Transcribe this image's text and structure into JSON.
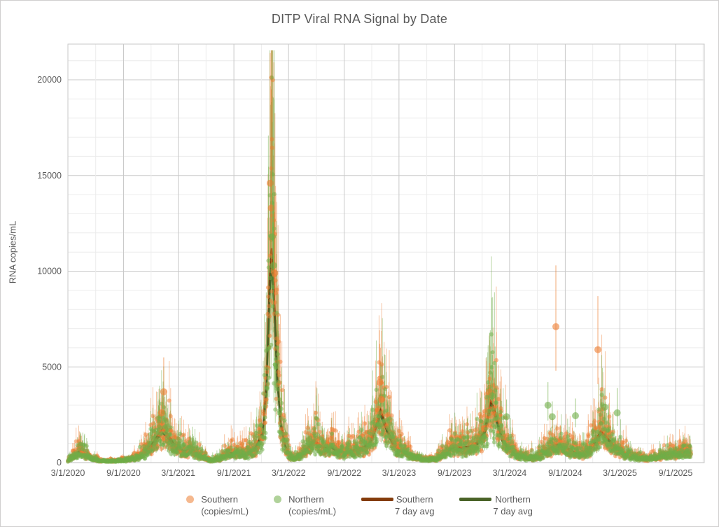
{
  "chart": {
    "title": "DITP Viral RNA Signal by Date",
    "y_axis_title": "RNA copies/mL"
  },
  "legend": {
    "items": [
      {
        "line1": "Southern",
        "line2": "(copies/mL)",
        "swatch": "circle",
        "color": "#ED7D31"
      },
      {
        "line1": "Northern",
        "line2": "(copies/mL)",
        "swatch": "circle",
        "color": "#70AD47"
      },
      {
        "line1": "Southern",
        "line2": "7 day avg",
        "swatch": "line",
        "color": "#843C0C"
      },
      {
        "line1": "Northern",
        "line2": "7 day avg",
        "swatch": "line",
        "color": "#4A6328"
      }
    ]
  },
  "chart_data": {
    "type": "scatter",
    "title": "DITP Viral RNA Signal by Date",
    "xlabel": "",
    "ylabel": "RNA copies/mL",
    "x_domain": [
      "2020-03-01",
      "2025-12-05"
    ],
    "y_domain": [
      0,
      21865
    ],
    "y_ticks": [
      0,
      5000,
      10000,
      15000,
      20000
    ],
    "x_ticks": [
      "3/1/2020",
      "9/1/2020",
      "3/1/2021",
      "9/1/2021",
      "3/1/2022",
      "9/1/2022",
      "3/1/2023",
      "9/1/2023",
      "3/1/2024",
      "9/1/2024",
      "3/1/2025",
      "9/1/2025"
    ],
    "x_tick_dates": [
      "2020-03-01",
      "2020-09-01",
      "2021-03-01",
      "2021-09-01",
      "2022-03-01",
      "2022-09-01",
      "2023-03-01",
      "2023-09-01",
      "2024-03-01",
      "2024-09-01",
      "2025-03-01",
      "2025-09-01"
    ],
    "grid": {
      "y_minor": 1000,
      "y_major": 5000,
      "x_minor_months": 3,
      "grid_on": true
    },
    "legend_position": "bottom",
    "colors": {
      "grid_major": "#c9c9c9",
      "grid_minor": "#ececec",
      "axis_line": "#bfbfbf",
      "text": "#595959"
    },
    "series": [
      {
        "name": "Southern (copies/mL)",
        "color": "#ED7D31",
        "avg_name": "Southern 7 day avg",
        "avg_color": "#843C0C"
      },
      {
        "name": "Northern (copies/mL)",
        "color": "#70AD47",
        "avg_name": "Northern 7 day avg",
        "avg_color": "#4A6328"
      }
    ],
    "anchors": [
      [
        "2020-03-01",
        120,
        90
      ],
      [
        "2020-03-20",
        350,
        300
      ],
      [
        "2020-04-10",
        650,
        560
      ],
      [
        "2020-04-25",
        500,
        430
      ],
      [
        "2020-05-15",
        280,
        240
      ],
      [
        "2020-06-10",
        120,
        100
      ],
      [
        "2020-07-10",
        80,
        70
      ],
      [
        "2020-08-10",
        100,
        85
      ],
      [
        "2020-09-10",
        140,
        120
      ],
      [
        "2020-10-10",
        260,
        220
      ],
      [
        "2020-11-05",
        500,
        430
      ],
      [
        "2020-12-01",
        900,
        780
      ],
      [
        "2020-12-22",
        1400,
        1250
      ],
      [
        "2021-01-08",
        1750,
        1550
      ],
      [
        "2021-01-28",
        1400,
        1250
      ],
      [
        "2021-02-20",
        850,
        750
      ],
      [
        "2021-03-20",
        600,
        520
      ],
      [
        "2021-04-15",
        700,
        620
      ],
      [
        "2021-05-15",
        380,
        330
      ],
      [
        "2021-06-15",
        130,
        110
      ],
      [
        "2021-07-15",
        210,
        180
      ],
      [
        "2021-08-10",
        480,
        420
      ],
      [
        "2021-09-10",
        520,
        460
      ],
      [
        "2021-10-10",
        480,
        430
      ],
      [
        "2021-11-10",
        750,
        670
      ],
      [
        "2021-12-05",
        1600,
        1450
      ],
      [
        "2021-12-18",
        4200,
        3800
      ],
      [
        "2021-12-28",
        9500,
        8700
      ],
      [
        "2022-01-04",
        11200,
        10300
      ],
      [
        "2022-01-12",
        8800,
        8200
      ],
      [
        "2022-01-22",
        4600,
        4300
      ],
      [
        "2022-02-03",
        2100,
        1950
      ],
      [
        "2022-02-18",
        900,
        830
      ],
      [
        "2022-03-05",
        380,
        340
      ],
      [
        "2022-03-20",
        210,
        190
      ],
      [
        "2022-04-05",
        330,
        310
      ],
      [
        "2022-04-20",
        560,
        520
      ],
      [
        "2022-05-10",
        900,
        830
      ],
      [
        "2022-05-25",
        1150,
        1050
      ],
      [
        "2022-06-10",
        950,
        880
      ],
      [
        "2022-07-01",
        750,
        700
      ],
      [
        "2022-07-20",
        820,
        760
      ],
      [
        "2022-08-10",
        640,
        600
      ],
      [
        "2022-09-01",
        520,
        490
      ],
      [
        "2022-09-25",
        620,
        570
      ],
      [
        "2022-10-15",
        720,
        660
      ],
      [
        "2022-11-05",
        820,
        750
      ],
      [
        "2022-11-25",
        1050,
        950
      ],
      [
        "2022-12-12",
        1800,
        1650
      ],
      [
        "2022-12-30",
        2750,
        2500
      ],
      [
        "2023-01-12",
        2150,
        1950
      ],
      [
        "2023-02-05",
        1150,
        1050
      ],
      [
        "2023-03-01",
        700,
        640
      ],
      [
        "2023-04-01",
        440,
        400
      ],
      [
        "2023-05-01",
        250,
        220
      ],
      [
        "2023-06-01",
        150,
        130
      ],
      [
        "2023-07-01",
        210,
        190
      ],
      [
        "2023-08-01",
        520,
        470
      ],
      [
        "2023-09-01",
        900,
        820
      ],
      [
        "2023-09-25",
        800,
        730
      ],
      [
        "2023-10-20",
        850,
        780
      ],
      [
        "2023-11-15",
        1050,
        960
      ],
      [
        "2023-12-10",
        1700,
        1550
      ],
      [
        "2023-12-30",
        3200,
        2950
      ],
      [
        "2024-01-12",
        2700,
        2500
      ],
      [
        "2024-02-05",
        1250,
        1150
      ],
      [
        "2024-03-01",
        700,
        640
      ],
      [
        "2024-04-01",
        360,
        330
      ],
      [
        "2024-05-01",
        260,
        240
      ],
      [
        "2024-06-01",
        310,
        290
      ],
      [
        "2024-07-01",
        620,
        570
      ],
      [
        "2024-08-01",
        950,
        870
      ],
      [
        "2024-08-20",
        900,
        830
      ],
      [
        "2024-09-10",
        750,
        690
      ],
      [
        "2024-10-05",
        520,
        480
      ],
      [
        "2024-11-01",
        460,
        420
      ],
      [
        "2024-12-01",
        900,
        830
      ],
      [
        "2024-12-28",
        1650,
        1520
      ],
      [
        "2025-01-15",
        1350,
        1250
      ],
      [
        "2025-02-05",
        950,
        870
      ],
      [
        "2025-03-01",
        620,
        570
      ],
      [
        "2025-04-01",
        400,
        370
      ],
      [
        "2025-05-01",
        260,
        240
      ],
      [
        "2025-06-01",
        200,
        185
      ],
      [
        "2025-07-01",
        300,
        280
      ],
      [
        "2025-08-01",
        400,
        370
      ],
      [
        "2025-09-01",
        470,
        430
      ],
      [
        "2025-10-01",
        560,
        520
      ],
      [
        "2025-10-22",
        520,
        480
      ]
    ],
    "outliers": [
      [
        "2021-01-05",
        "S",
        2600,
        2000,
        3600
      ],
      [
        "2021-01-12",
        "S",
        3700,
        2650,
        5500
      ],
      [
        "2021-12-30",
        "S",
        14600,
        10800,
        21400
      ],
      [
        "2022-01-03",
        "S",
        13300,
        9900,
        19500
      ],
      [
        "2022-01-06",
        "N",
        11800,
        9100,
        15800
      ],
      [
        "2022-01-10",
        "N",
        10300,
        8100,
        13600
      ],
      [
        "2022-01-14",
        "S",
        9900,
        7800,
        13100
      ],
      [
        "2022-12-28",
        "S",
        4200,
        3100,
        6200
      ],
      [
        "2023-01-03",
        "S",
        3300,
        2500,
        4600
      ],
      [
        "2023-12-26",
        "S",
        3700,
        2800,
        5200
      ],
      [
        "2024-01-04",
        "N",
        3500,
        2700,
        4700
      ],
      [
        "2024-02-20",
        "N",
        2400,
        1800,
        3300
      ],
      [
        "2024-07-06",
        "N",
        3000,
        2200,
        4200
      ],
      [
        "2024-07-20",
        "N",
        2400,
        1800,
        3200
      ],
      [
        "2024-08-01",
        "S",
        7100,
        4800,
        10300
      ],
      [
        "2024-10-05",
        "N",
        2450,
        1850,
        3350
      ],
      [
        "2024-12-18",
        "S",
        5900,
        4100,
        8700
      ],
      [
        "2025-01-10",
        "N",
        2900,
        2200,
        3900
      ],
      [
        "2025-02-20",
        "N",
        2600,
        1900,
        3900
      ]
    ],
    "synthesis": {
      "seed": 42,
      "sigma": 0.38,
      "err_hi": 1.45,
      "err_lo": 0.78,
      "start": "2020-03-01",
      "end": "2025-10-22"
    }
  }
}
